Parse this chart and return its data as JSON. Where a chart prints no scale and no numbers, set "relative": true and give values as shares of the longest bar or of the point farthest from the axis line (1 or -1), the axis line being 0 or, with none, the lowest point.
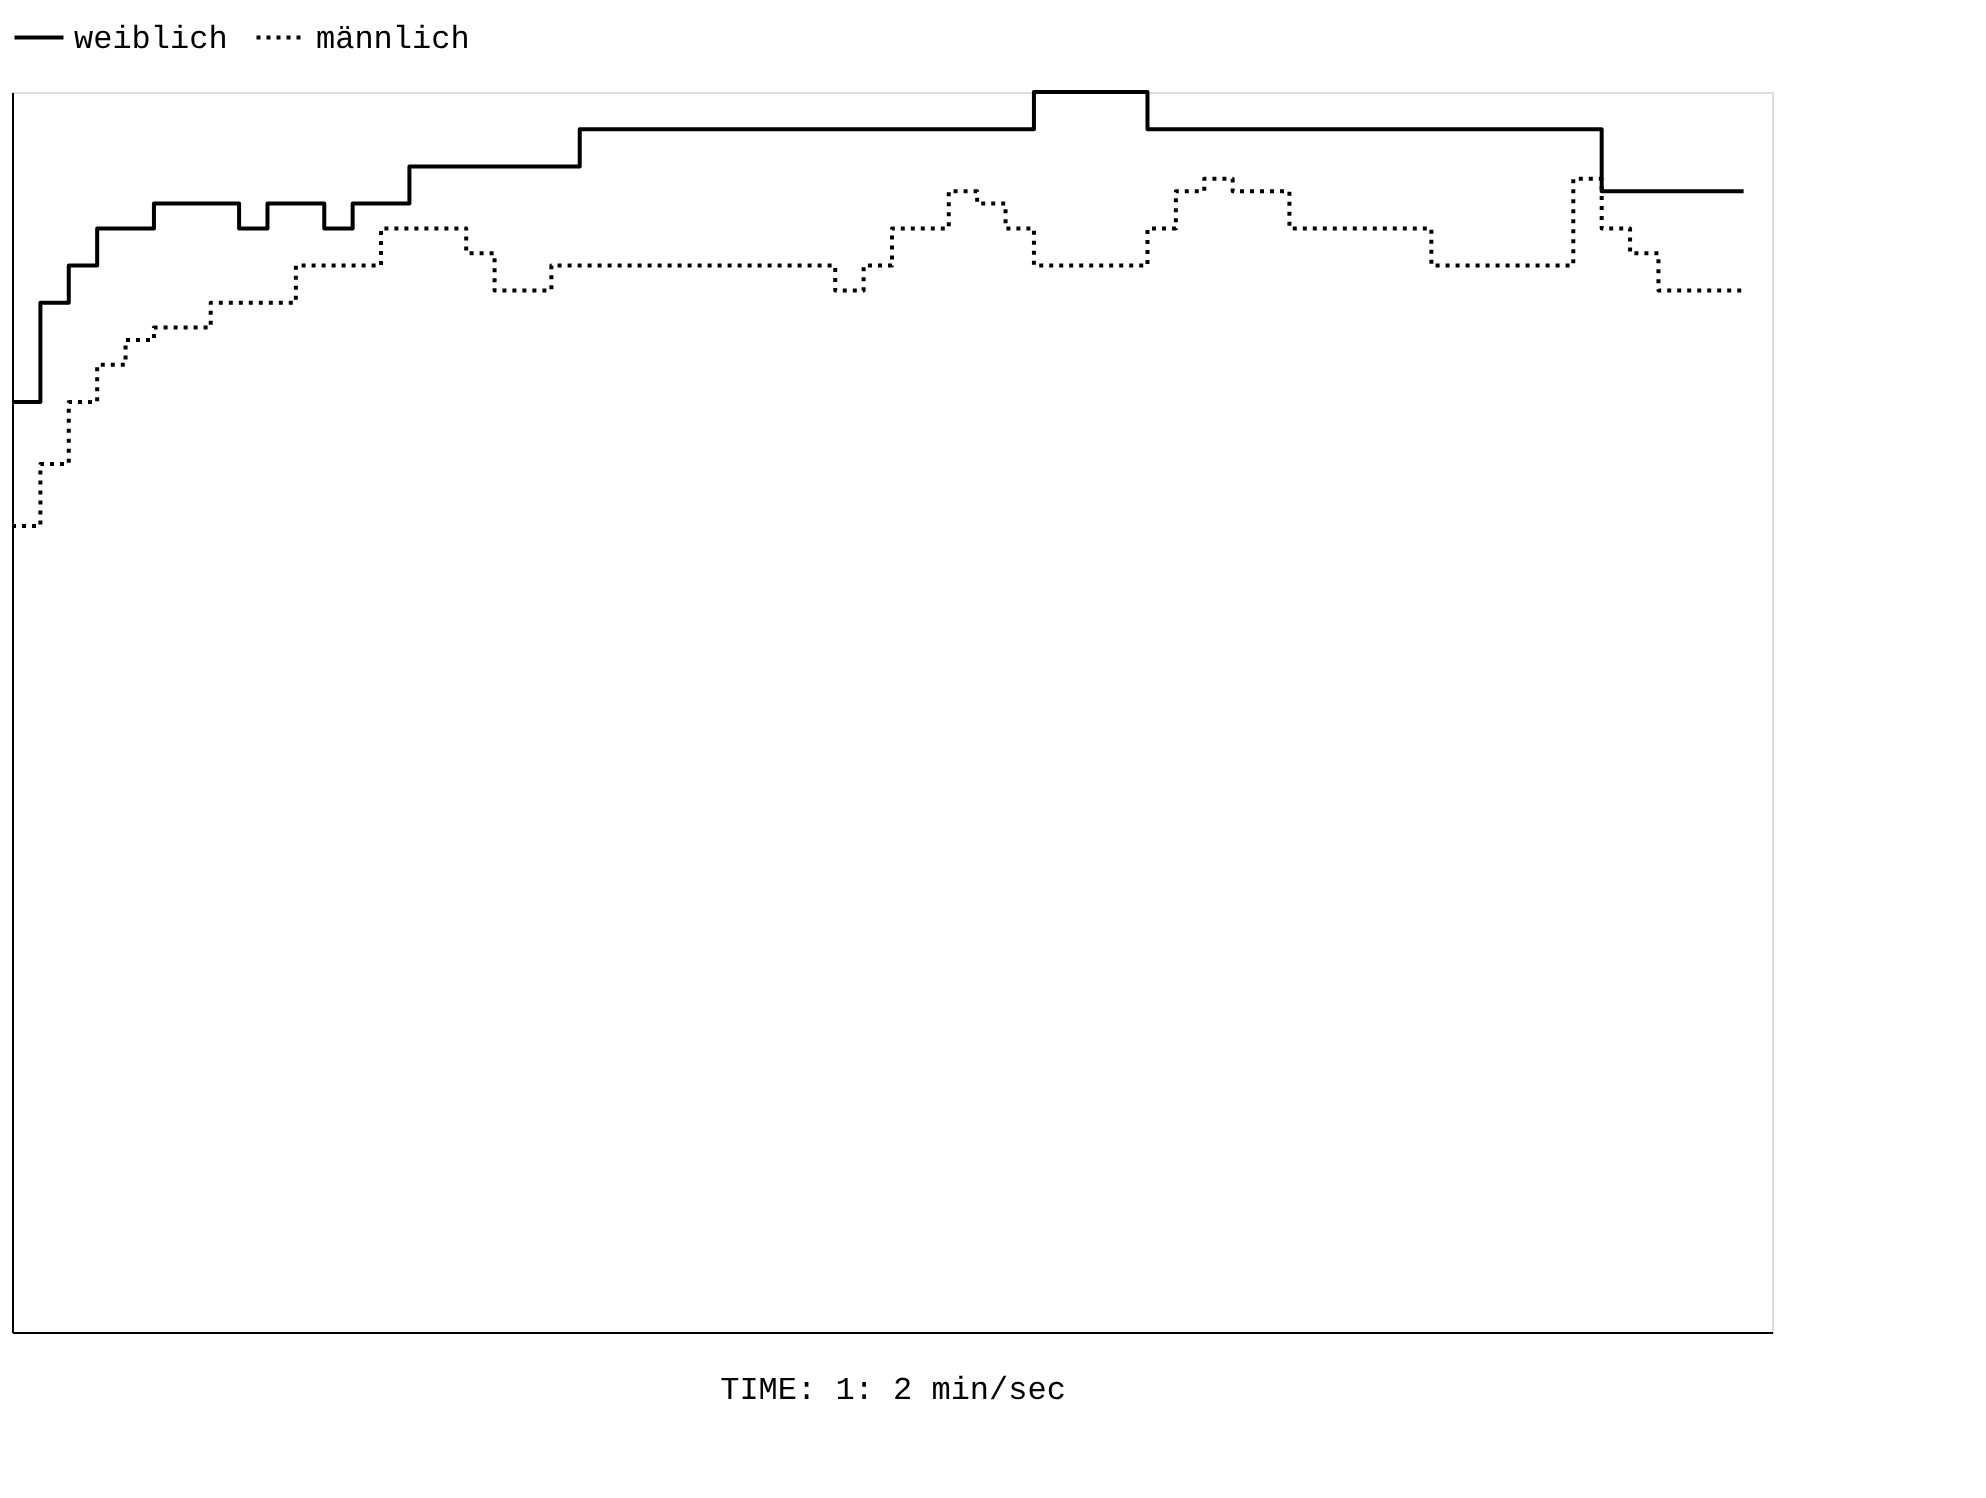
{
  "chart_data": {
    "type": "step",
    "relative": true,
    "xlabel": "TIME:  1: 2    min/sec",
    "legend": "top left",
    "grid": false,
    "tick_labels": false,
    "categories": [
      null,
      null,
      null,
      null,
      null,
      null,
      null,
      null,
      null,
      null,
      null,
      null,
      null,
      null,
      null,
      null,
      null,
      null,
      null,
      null,
      null,
      null,
      null,
      null,
      null,
      null,
      null,
      null,
      null,
      null,
      null,
      null,
      null,
      null,
      null,
      null,
      null,
      null,
      null,
      null,
      null,
      null,
      null,
      null,
      null,
      null,
      null,
      null,
      null,
      null,
      null,
      null,
      null,
      null,
      null,
      null,
      null,
      null,
      null,
      null,
      null,
      null
    ],
    "series": [
      {
        "name": "weiblich",
        "color": "#000000",
        "line_style": "solid",
        "values": [
          0.75,
          0.83,
          0.86,
          0.89,
          0.89,
          0.91,
          0.91,
          0.91,
          0.89,
          0.91,
          0.91,
          0.89,
          0.91,
          0.91,
          0.94,
          0.94,
          0.94,
          0.94,
          0.94,
          0.94,
          0.97,
          0.97,
          0.97,
          0.97,
          0.97,
          0.97,
          0.97,
          0.97,
          0.97,
          0.97,
          0.97,
          0.97,
          0.97,
          0.97,
          0.97,
          0.97,
          1.0,
          1.0,
          1.0,
          1.0,
          0.97,
          0.97,
          0.97,
          0.97,
          0.97,
          0.97,
          0.97,
          0.97,
          0.97,
          0.97,
          0.97,
          0.97,
          0.97,
          0.97,
          0.97,
          0.97,
          0.92,
          0.92,
          0.92,
          0.92,
          0.92,
          0.92
        ]
      },
      {
        "name": "männlich",
        "color": "#000000",
        "line_style": "dotted",
        "values": [
          0.65,
          0.7,
          0.75,
          0.78,
          0.8,
          0.81,
          0.81,
          0.83,
          0.83,
          0.83,
          0.86,
          0.86,
          0.86,
          0.89,
          0.89,
          0.89,
          0.87,
          0.84,
          0.84,
          0.86,
          0.86,
          0.86,
          0.86,
          0.86,
          0.86,
          0.86,
          0.86,
          0.86,
          0.86,
          0.84,
          0.86,
          0.89,
          0.89,
          0.92,
          0.91,
          0.89,
          0.86,
          0.86,
          0.86,
          0.86,
          0.89,
          0.92,
          0.93,
          0.92,
          0.92,
          0.89,
          0.89,
          0.89,
          0.89,
          0.89,
          0.86,
          0.86,
          0.86,
          0.86,
          0.86,
          0.93,
          0.89,
          0.87,
          0.84,
          0.84,
          0.84,
          0.84
        ]
      }
    ]
  }
}
